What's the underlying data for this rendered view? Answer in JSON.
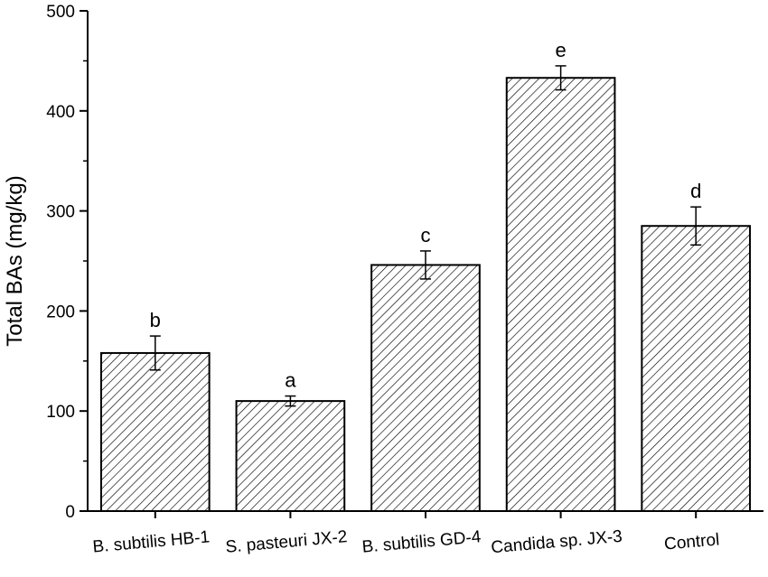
{
  "chart_data": {
    "type": "bar",
    "title": "",
    "xlabel": "",
    "ylabel": "Total BAs (mg/kg)",
    "ylim": [
      0,
      500
    ],
    "yticks": [
      0,
      100,
      200,
      300,
      400,
      500
    ],
    "grid": false,
    "legend": "none",
    "bar_fill": "diagonal-hatch",
    "categories": [
      "B. subtilis HB-1",
      "S. pasteuri JX-2",
      "B. subtilis GD-4",
      "Candida sp.  JX-3",
      "Control"
    ],
    "values": [
      158,
      110,
      246,
      433,
      285
    ],
    "errors": [
      17,
      5,
      14,
      12,
      19
    ],
    "significance": [
      "b",
      "a",
      "c",
      "e",
      "d"
    ]
  },
  "colors": {
    "bar_stroke": "#000000",
    "hatch": "#000000",
    "background": "#ffffff"
  }
}
